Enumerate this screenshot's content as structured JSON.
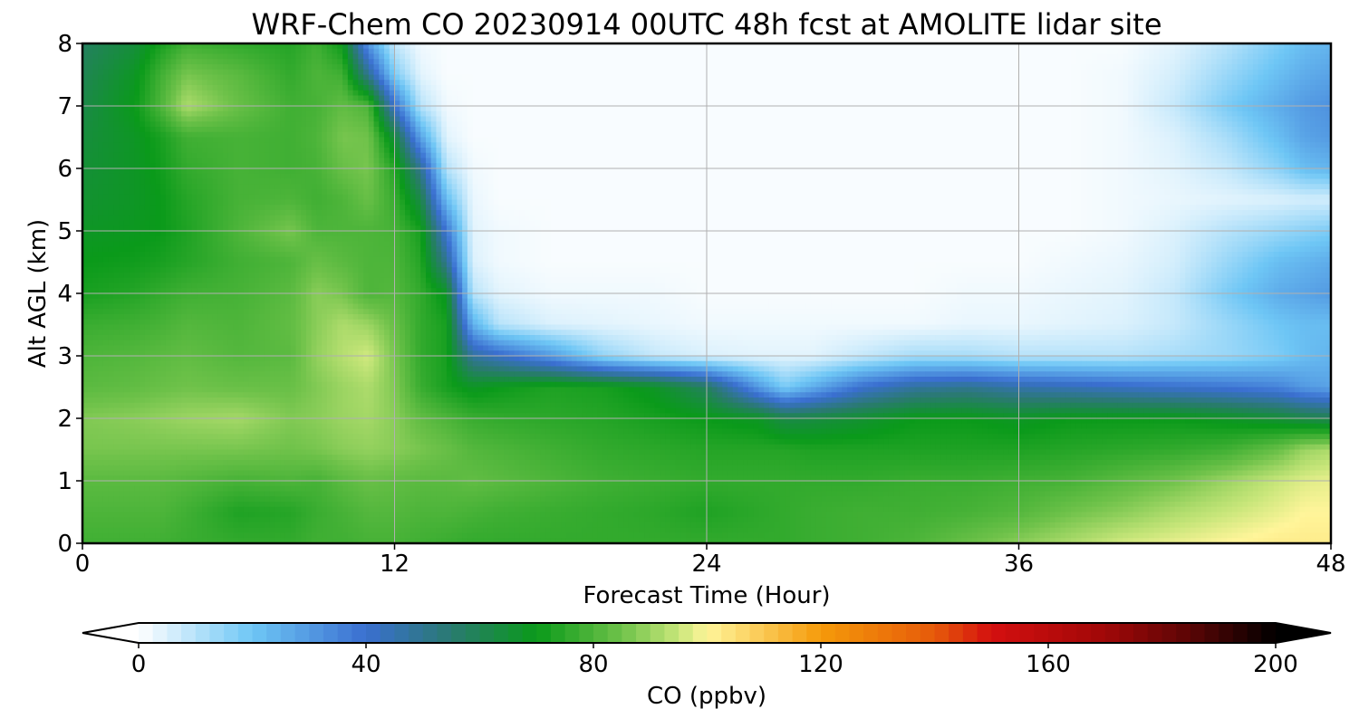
{
  "chart_data": {
    "type": "heatmap",
    "title": "WRF-Chem CO  20230914 00UTC 48h fcst at AMOLITE lidar site",
    "xlabel": "Forecast Time (Hour)",
    "ylabel": "Alt AGL (km)",
    "xlim": [
      0,
      48
    ],
    "ylim": [
      0,
      8
    ],
    "xticks": [
      0,
      12,
      24,
      36,
      48
    ],
    "yticks": [
      0,
      1,
      2,
      3,
      4,
      5,
      6,
      7,
      8
    ],
    "grid": true,
    "x": [
      0,
      2,
      3,
      4,
      6,
      8,
      9,
      10,
      11,
      12,
      13,
      14,
      15,
      16,
      18,
      20,
      22,
      24,
      26,
      27,
      28,
      30,
      32,
      34,
      36,
      38,
      40,
      42,
      44,
      46,
      47,
      48
    ],
    "y": [
      0,
      0.5,
      1,
      1.5,
      2,
      2.5,
      3,
      3.5,
      4,
      4.5,
      5,
      5.5,
      6,
      6.5,
      7,
      7.5,
      8
    ],
    "values": [
      [
        78,
        78,
        78,
        77,
        76,
        76,
        78,
        78,
        79,
        79,
        78,
        77,
        76,
        76,
        76,
        76,
        76,
        76,
        76,
        76,
        77,
        78,
        80,
        84,
        88,
        92,
        96,
        98,
        100,
        102,
        102,
        102
      ],
      [
        80,
        80,
        80,
        78,
        73,
        74,
        77,
        79,
        81,
        81,
        80,
        80,
        79,
        78,
        77,
        76,
        75,
        73,
        75,
        76,
        77,
        78,
        78,
        79,
        81,
        85,
        88,
        92,
        95,
        98,
        100,
        100
      ],
      [
        82,
        82,
        82,
        81,
        79,
        80,
        79,
        82,
        84,
        83,
        82,
        82,
        83,
        82,
        80,
        78,
        77,
        76,
        76,
        76,
        76,
        76,
        77,
        77,
        78,
        79,
        82,
        85,
        90,
        95,
        97,
        98
      ],
      [
        86,
        86,
        86,
        86,
        86,
        85,
        86,
        88,
        89,
        88,
        86,
        84,
        81,
        80,
        78,
        76,
        75,
        74,
        74,
        74,
        73,
        73,
        73,
        73,
        73,
        74,
        75,
        76,
        78,
        84,
        90,
        92
      ],
      [
        87,
        88,
        89,
        90,
        91,
        87,
        88,
        90,
        91,
        88,
        83,
        80,
        77,
        76,
        75,
        74,
        72,
        70,
        68,
        62,
        63,
        66,
        70,
        70,
        68,
        70,
        70,
        70,
        68,
        65,
        62,
        60
      ],
      [
        82,
        83,
        84,
        85,
        84,
        84,
        87,
        90,
        92,
        87,
        77,
        72,
        68,
        70,
        73,
        72,
        68,
        58,
        30,
        18,
        25,
        40,
        48,
        50,
        46,
        44,
        42,
        40,
        38,
        35,
        30,
        28
      ],
      [
        80,
        81,
        82,
        83,
        81,
        82,
        89,
        93,
        96,
        86,
        76,
        72,
        48,
        42,
        30,
        15,
        8,
        5,
        4,
        4,
        4,
        8,
        12,
        12,
        10,
        10,
        10,
        12,
        14,
        18,
        22,
        24
      ],
      [
        77,
        78,
        79,
        81,
        80,
        83,
        88,
        92,
        90,
        84,
        76,
        72,
        25,
        10,
        5,
        4,
        3,
        2,
        2,
        2,
        2,
        2,
        2,
        3,
        3,
        4,
        5,
        8,
        14,
        20,
        22,
        22
      ],
      [
        72,
        74,
        76,
        78,
        79,
        82,
        88,
        86,
        80,
        81,
        76,
        68,
        10,
        4,
        2,
        2,
        2,
        1,
        1,
        1,
        1,
        1,
        1,
        2,
        2,
        3,
        4,
        8,
        18,
        26,
        28,
        30
      ],
      [
        70,
        71,
        72,
        74,
        78,
        80,
        84,
        82,
        80,
        80,
        74,
        50,
        5,
        2,
        1,
        1,
        1,
        1,
        1,
        1,
        1,
        1,
        1,
        1,
        1,
        2,
        3,
        6,
        14,
        22,
        24,
        26
      ],
      [
        68,
        69,
        70,
        73,
        80,
        86,
        80,
        80,
        80,
        79,
        72,
        38,
        4,
        2,
        1,
        1,
        1,
        1,
        1,
        1,
        1,
        1,
        1,
        1,
        1,
        1,
        2,
        5,
        10,
        14,
        16,
        18
      ],
      [
        66,
        68,
        70,
        74,
        79,
        80,
        78,
        80,
        84,
        77,
        62,
        22,
        3,
        1,
        1,
        1,
        1,
        1,
        1,
        1,
        1,
        1,
        1,
        1,
        1,
        1,
        2,
        3,
        4,
        5,
        6,
        6
      ],
      [
        65,
        68,
        71,
        76,
        79,
        78,
        79,
        84,
        86,
        74,
        50,
        10,
        2,
        1,
        1,
        1,
        1,
        1,
        1,
        1,
        1,
        1,
        1,
        1,
        1,
        1,
        2,
        4,
        8,
        16,
        22,
        24
      ],
      [
        64,
        68,
        72,
        78,
        79,
        78,
        80,
        86,
        85,
        64,
        28,
        4,
        1,
        1,
        1,
        1,
        1,
        1,
        1,
        1,
        1,
        1,
        1,
        1,
        1,
        1,
        2,
        5,
        12,
        22,
        28,
        30
      ],
      [
        62,
        70,
        80,
        92,
        84,
        78,
        79,
        83,
        80,
        40,
        10,
        2,
        1,
        1,
        1,
        1,
        1,
        1,
        1,
        1,
        1,
        1,
        1,
        1,
        1,
        1,
        2,
        8,
        18,
        26,
        30,
        32
      ],
      [
        60,
        68,
        78,
        86,
        82,
        76,
        80,
        78,
        50,
        18,
        4,
        1,
        1,
        1,
        1,
        1,
        1,
        1,
        1,
        1,
        1,
        1,
        1,
        1,
        1,
        1,
        2,
        6,
        14,
        22,
        26,
        28
      ],
      [
        58,
        64,
        72,
        78,
        76,
        74,
        78,
        70,
        30,
        8,
        2,
        1,
        1,
        1,
        1,
        1,
        1,
        1,
        1,
        1,
        1,
        1,
        1,
        1,
        1,
        1,
        1,
        4,
        10,
        18,
        22,
        24
      ]
    ],
    "colorbar": {
      "label": "CO  (ppbv)",
      "ticks": [
        0,
        40,
        80,
        120,
        160,
        200
      ],
      "range": [
        0,
        200
      ],
      "extend": "both",
      "colors": [
        [
          0,
          "#ffffff"
        ],
        [
          20,
          "#6ec6f5"
        ],
        [
          40,
          "#3a6fd0"
        ],
        [
          55,
          "#2a7a70"
        ],
        [
          70,
          "#0a9a1a"
        ],
        [
          85,
          "#6fc24a"
        ],
        [
          95,
          "#c8e67a"
        ],
        [
          100,
          "#fff59a"
        ],
        [
          120,
          "#f59a0a"
        ],
        [
          140,
          "#e65a0a"
        ],
        [
          150,
          "#d40f0f"
        ],
        [
          170,
          "#a00808"
        ],
        [
          185,
          "#5a0505"
        ],
        [
          200,
          "#000000"
        ]
      ],
      "under_color": "#ffffff",
      "over_color": "#000000"
    }
  }
}
